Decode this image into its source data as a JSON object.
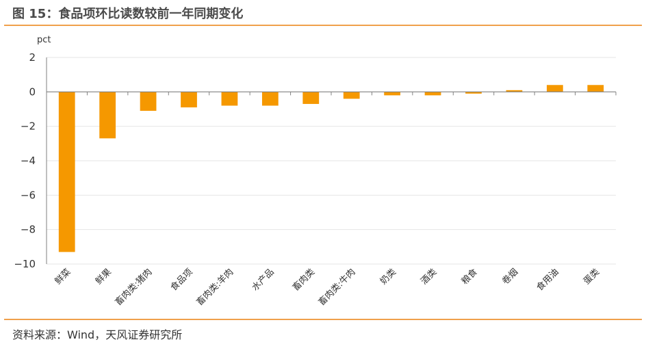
{
  "header": {
    "title": "图 15：食品项环比读数较前一年同期变化"
  },
  "footer": {
    "source": "资料来源：Wind，天风证券研究所"
  },
  "colors": {
    "accent": "#f0a04b",
    "bar": "#f59800",
    "grid": "#e6e6e6",
    "axis": "#808080"
  },
  "chart_data": {
    "type": "bar",
    "ylabel": "pct",
    "ylim": [
      -10,
      2
    ],
    "yticks": [
      2,
      0,
      -2,
      -4,
      -6,
      -8,
      -10
    ],
    "ytick_labels": [
      "2",
      "0",
      "−2",
      "−4",
      "−6",
      "−8",
      "−10"
    ],
    "grid": true,
    "categories": [
      "鲜菜",
      "鲜果",
      "畜肉类:猪肉",
      "食品项",
      "畜肉类:羊肉",
      "水产品",
      "畜肉类",
      "畜肉类:牛肉",
      "奶类",
      "酒类",
      "粮食",
      "卷烟",
      "食用油",
      "蛋类"
    ],
    "values": [
      -9.3,
      -2.7,
      -1.1,
      -0.9,
      -0.8,
      -0.8,
      -0.7,
      -0.4,
      -0.2,
      -0.2,
      -0.1,
      0.1,
      0.4,
      0.4
    ]
  }
}
